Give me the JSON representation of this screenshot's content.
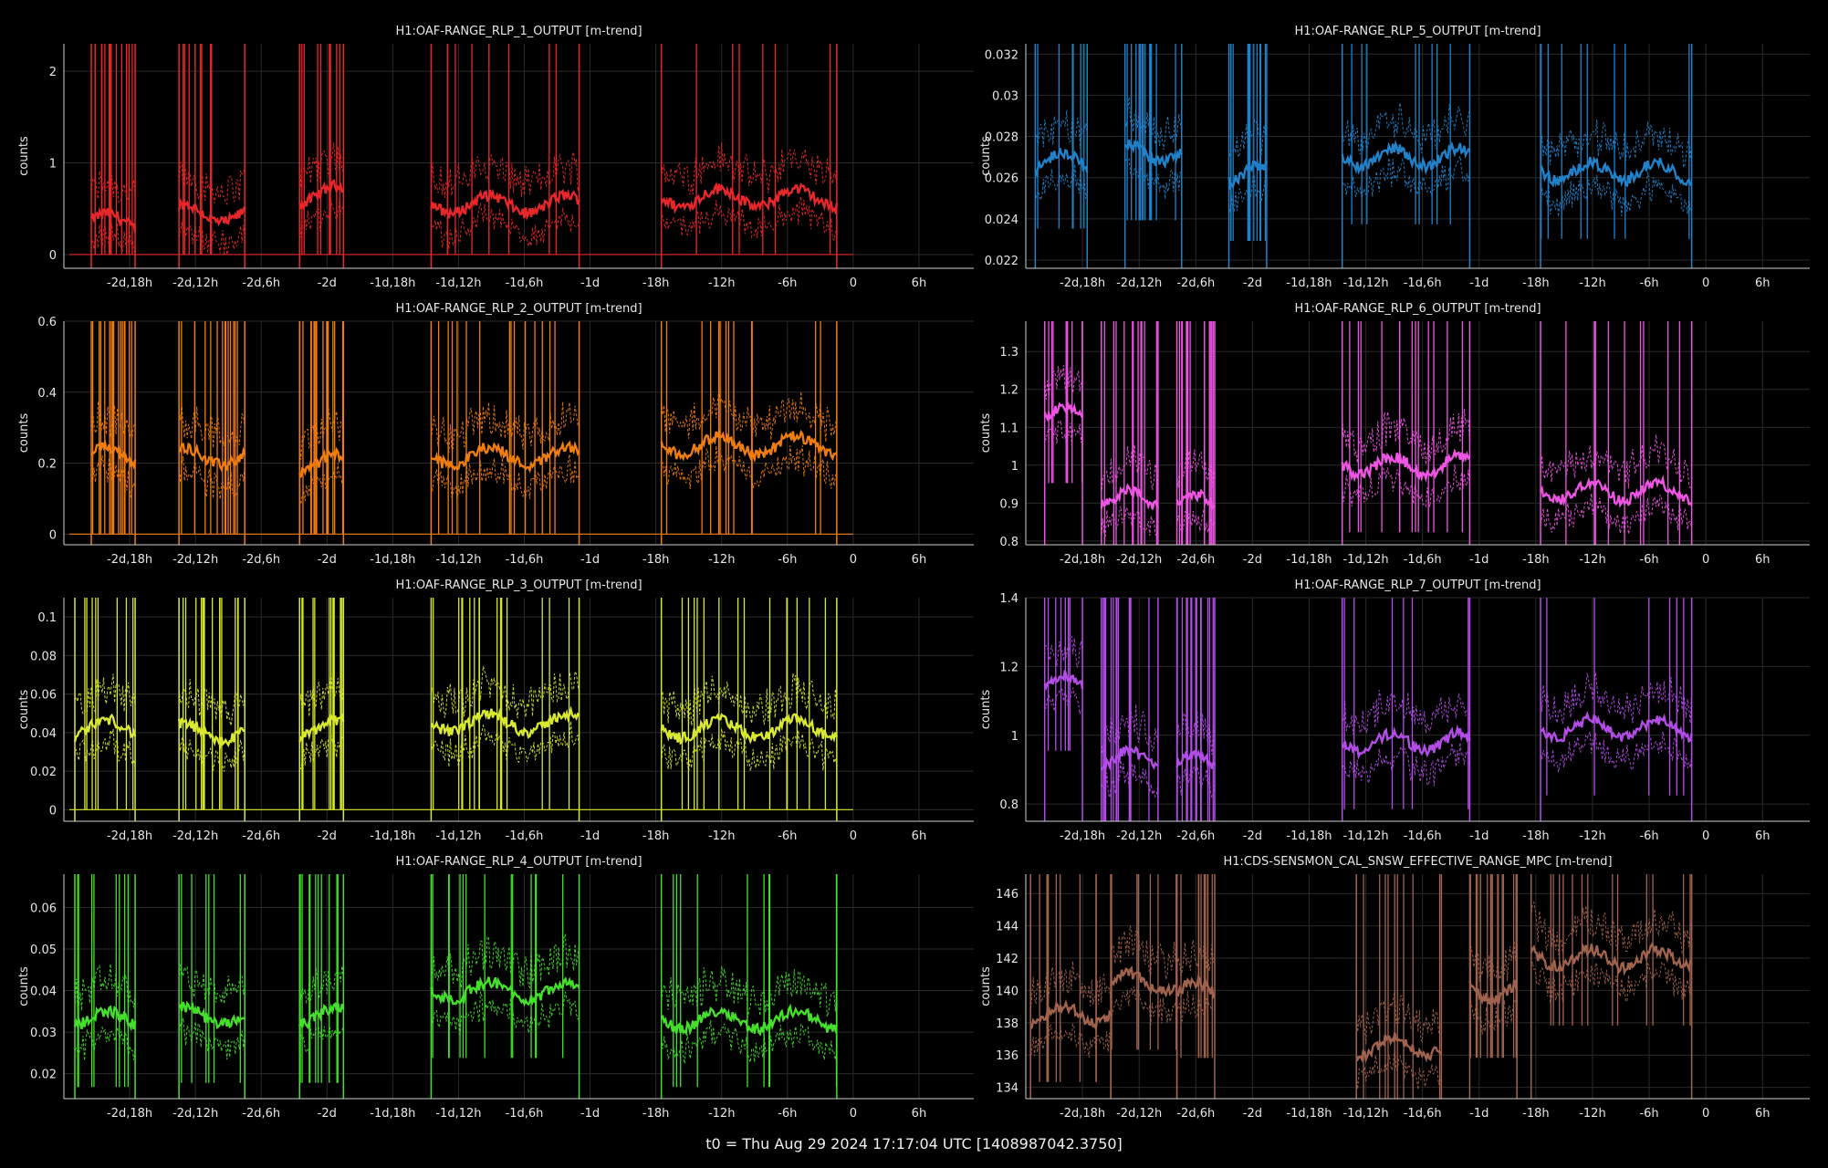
{
  "footer": "t0 = Thu Aug 29 2024 17:17:04 UTC [1408987042.3750]",
  "x_ticks": [
    "-2d,18h",
    "-2d,12h",
    "-2d,6h",
    "-2d",
    "-1d,18h",
    "-1d,12h",
    "-1d,6h",
    "-1d",
    "-18h",
    "-12h",
    "-6h",
    "0",
    "6h"
  ],
  "chart_data": [
    {
      "type": "line",
      "title": "H1:OAF-RANGE_RLP_1_OUTPUT [m-trend]",
      "ylabel": "counts",
      "x_unit": "hours relative to t0",
      "xlim": [
        -72,
        11
      ],
      "ylim": [
        -0.15,
        2.3
      ],
      "yticks": [
        0,
        1,
        2
      ],
      "ytick_labels": [
        "0",
        "1",
        "2"
      ],
      "color": "#e8272b",
      "segments": [
        [
          -69.5,
          -65.5,
          0.35
        ],
        [
          -61.5,
          -55.5,
          0.45
        ],
        [
          -50.5,
          -46.5,
          0.65
        ],
        [
          -38.5,
          -25,
          0.55
        ],
        [
          -17.5,
          -1.5,
          0.62
        ]
      ],
      "series": [
        {
          "values_description": "mean/min/max trend"
        }
      ]
    },
    {
      "type": "line",
      "title": "H1:OAF-RANGE_RLP_2_OUTPUT [m-trend]",
      "ylabel": "counts",
      "x_unit": "hours relative to t0",
      "xlim": [
        -72,
        11
      ],
      "ylim": [
        -0.03,
        0.6
      ],
      "yticks": [
        0,
        0.2,
        0.4,
        0.6
      ],
      "ytick_labels": [
        "0",
        "0.2",
        "0.4",
        "0.6"
      ],
      "color": "#f07d10",
      "segments": [
        [
          -69.5,
          -65.5,
          0.22
        ],
        [
          -61.5,
          -55.5,
          0.22
        ],
        [
          -50.5,
          -46.5,
          0.2
        ],
        [
          -38.5,
          -25,
          0.22
        ],
        [
          -17.5,
          -1.5,
          0.25
        ]
      ]
    },
    {
      "type": "line",
      "title": "H1:OAF-RANGE_RLP_3_OUTPUT [m-trend]",
      "ylabel": "counts",
      "x_unit": "hours relative to t0",
      "xlim": [
        -72,
        11
      ],
      "ylim": [
        -0.006,
        0.11
      ],
      "yticks": [
        0,
        0.02,
        0.04,
        0.06,
        0.08,
        0.1
      ],
      "ytick_labels": [
        "0",
        "0.02",
        "0.04",
        "0.06",
        "0.08",
        "0.1"
      ],
      "color": "#d9e830",
      "segments": [
        [
          -71,
          -65.5,
          0.042
        ],
        [
          -61.5,
          -55.5,
          0.04
        ],
        [
          -50.5,
          -46.5,
          0.042
        ],
        [
          -38.5,
          -25,
          0.045
        ],
        [
          -17.5,
          -1.5,
          0.042
        ]
      ]
    },
    {
      "type": "line",
      "title": "H1:OAF-RANGE_RLP_4_OUTPUT [m-trend]",
      "ylabel": "counts",
      "x_unit": "hours relative to t0",
      "xlim": [
        -72,
        11
      ],
      "ylim": [
        0.014,
        0.068
      ],
      "yticks": [
        0.02,
        0.03,
        0.04,
        0.05,
        0.06
      ],
      "ytick_labels": [
        "0.02",
        "0.03",
        "0.04",
        "0.05",
        "0.06"
      ],
      "color": "#44e02c",
      "segments": [
        [
          -71,
          -65.5,
          0.033
        ],
        [
          -61.5,
          -55.5,
          0.034
        ],
        [
          -50.5,
          -46.5,
          0.034
        ],
        [
          -38.5,
          -25,
          0.04
        ],
        [
          -17.5,
          -1.5,
          0.033
        ]
      ]
    },
    {
      "type": "line",
      "title": "H1:OAF-RANGE_RLP_5_OUTPUT [m-trend]",
      "ylabel": "counts",
      "x_unit": "hours relative to t0",
      "xlim": [
        -72,
        11
      ],
      "ylim": [
        0.0216,
        0.0325
      ],
      "yticks": [
        0.022,
        0.024,
        0.026,
        0.028,
        0.03,
        0.032
      ],
      "ytick_labels": [
        "0.022",
        "0.024",
        "0.026",
        "0.028",
        "0.03",
        "0.032"
      ],
      "color": "#2181c9",
      "segments": [
        [
          -71,
          -65.5,
          0.0268
        ],
        [
          -61.5,
          -55.5,
          0.0272
        ],
        [
          -50.5,
          -46.5,
          0.0262
        ],
        [
          -38.5,
          -25,
          0.027
        ],
        [
          -17.5,
          -1.5,
          0.0263
        ]
      ]
    },
    {
      "type": "line",
      "title": "H1:OAF-RANGE_RLP_6_OUTPUT [m-trend]",
      "ylabel": "counts",
      "x_unit": "hours relative to t0",
      "xlim": [
        -72,
        11
      ],
      "ylim": [
        0.79,
        1.38
      ],
      "yticks": [
        0.8,
        0.9,
        1,
        1.1,
        1.2,
        1.3
      ],
      "ytick_labels": [
        "0.8",
        "0.9",
        "1",
        "1.1",
        "1.2",
        "1.3"
      ],
      "color": "#ee55e2",
      "segments": [
        [
          -70,
          -66,
          1.13
        ],
        [
          -64,
          -58,
          0.91
        ],
        [
          -56,
          -52,
          0.9
        ],
        [
          -38.5,
          -25,
          1.0
        ],
        [
          -17.5,
          -1.5,
          0.93
        ]
      ]
    },
    {
      "type": "line",
      "title": "H1:OAF-RANGE_RLP_7_OUTPUT [m-trend]",
      "ylabel": "counts",
      "x_unit": "hours relative to t0",
      "xlim": [
        -72,
        11
      ],
      "ylim": [
        0.75,
        1.4
      ],
      "yticks": [
        0.8,
        1,
        1.2,
        1.4
      ],
      "ytick_labels": [
        "0.8",
        "1",
        "1.2",
        "1.4"
      ],
      "color": "#b44de8",
      "segments": [
        [
          -70,
          -66,
          1.15
        ],
        [
          -64,
          -58,
          0.93
        ],
        [
          -56,
          -52,
          0.92
        ],
        [
          -38.5,
          -25,
          0.98
        ],
        [
          -17.5,
          -1.5,
          1.02
        ]
      ]
    },
    {
      "type": "line",
      "title": "H1:CDS-SENSMON_CAL_SNSW_EFFECTIVE_RANGE_MPC [m-trend]",
      "ylabel": "counts",
      "x_unit": "hours relative to t0",
      "xlim": [
        -72,
        11
      ],
      "ylim": [
        133.3,
        147.2
      ],
      "yticks": [
        134,
        136,
        138,
        140,
        142,
        144,
        146
      ],
      "ytick_labels": [
        "134",
        "136",
        "138",
        "140",
        "142",
        "144",
        "146"
      ],
      "color": "#a0634e",
      "segments": [
        [
          -71.5,
          -63,
          138.5
        ],
        [
          -63,
          -56,
          140.5
        ],
        [
          -56,
          -52,
          140
        ],
        [
          -37,
          -28,
          136.5
        ],
        [
          -25,
          -20,
          140
        ],
        [
          -18.5,
          -1.5,
          142
        ]
      ]
    }
  ]
}
